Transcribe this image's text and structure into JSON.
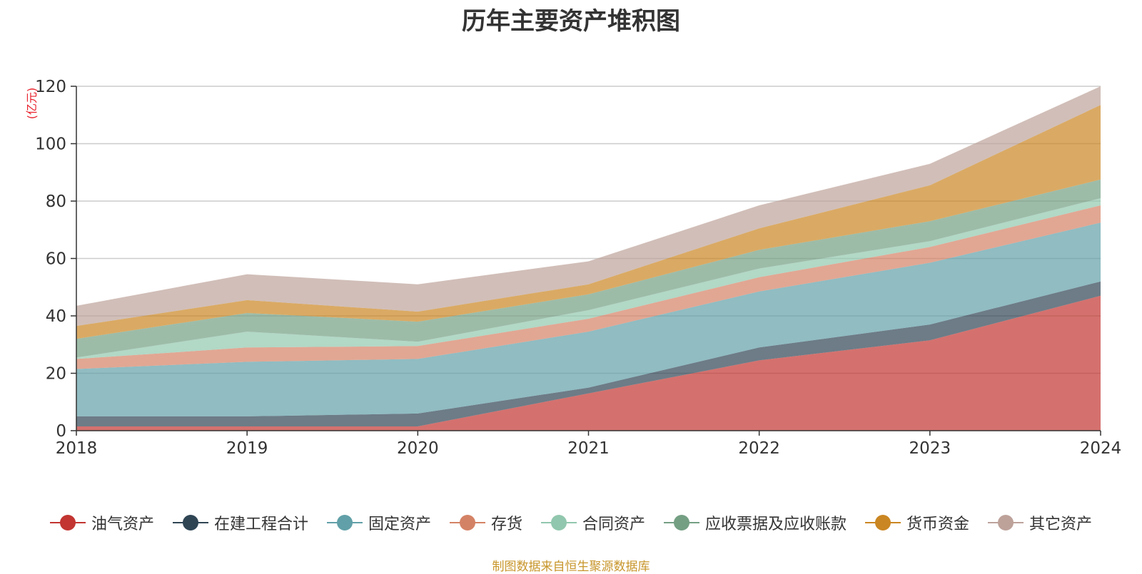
{
  "chart_data": {
    "type": "area",
    "stacked": true,
    "title": "历年主要资产堆积图",
    "y_unit": "(亿元)",
    "x": [
      "2018",
      "2019",
      "2020",
      "2021",
      "2022",
      "2023",
      "2024"
    ],
    "ylim": [
      0,
      120
    ],
    "yticks": [
      0,
      20,
      40,
      60,
      80,
      100,
      120
    ],
    "grid": true,
    "legend_position": "bottom",
    "series": [
      {
        "name": "油气资产",
        "color": "#c23531",
        "values": [
          1.5,
          1.5,
          1.5,
          13.0,
          24.5,
          31.5,
          47.0
        ]
      },
      {
        "name": "在建工程合计",
        "color": "#2f4554",
        "values": [
          3.5,
          3.5,
          4.5,
          2.0,
          4.5,
          5.5,
          5.0
        ]
      },
      {
        "name": "固定资产",
        "color": "#61a0a8",
        "values": [
          16.5,
          19.0,
          19.0,
          19.5,
          19.5,
          21.5,
          20.5
        ]
      },
      {
        "name": "存货",
        "color": "#d48265",
        "values": [
          3.5,
          5.0,
          4.5,
          4.5,
          5.0,
          5.5,
          6.0
        ]
      },
      {
        "name": "合同资产",
        "color": "#91c7ae",
        "values": [
          0.5,
          5.5,
          1.5,
          3.0,
          3.0,
          2.0,
          2.5
        ]
      },
      {
        "name": "应收票据及应收账款",
        "color": "#749f83",
        "values": [
          6.5,
          6.5,
          7.0,
          5.5,
          6.5,
          7.0,
          6.5
        ]
      },
      {
        "name": "货币资金",
        "color": "#ca8622",
        "values": [
          4.5,
          4.5,
          3.5,
          3.5,
          7.5,
          12.5,
          26.0
        ]
      },
      {
        "name": "其它资产",
        "color": "#bda29a",
        "values": [
          7.0,
          9.0,
          9.5,
          8.0,
          8.0,
          7.5,
          6.5
        ]
      }
    ]
  },
  "source_note": "制图数据来自恒生聚源数据库"
}
